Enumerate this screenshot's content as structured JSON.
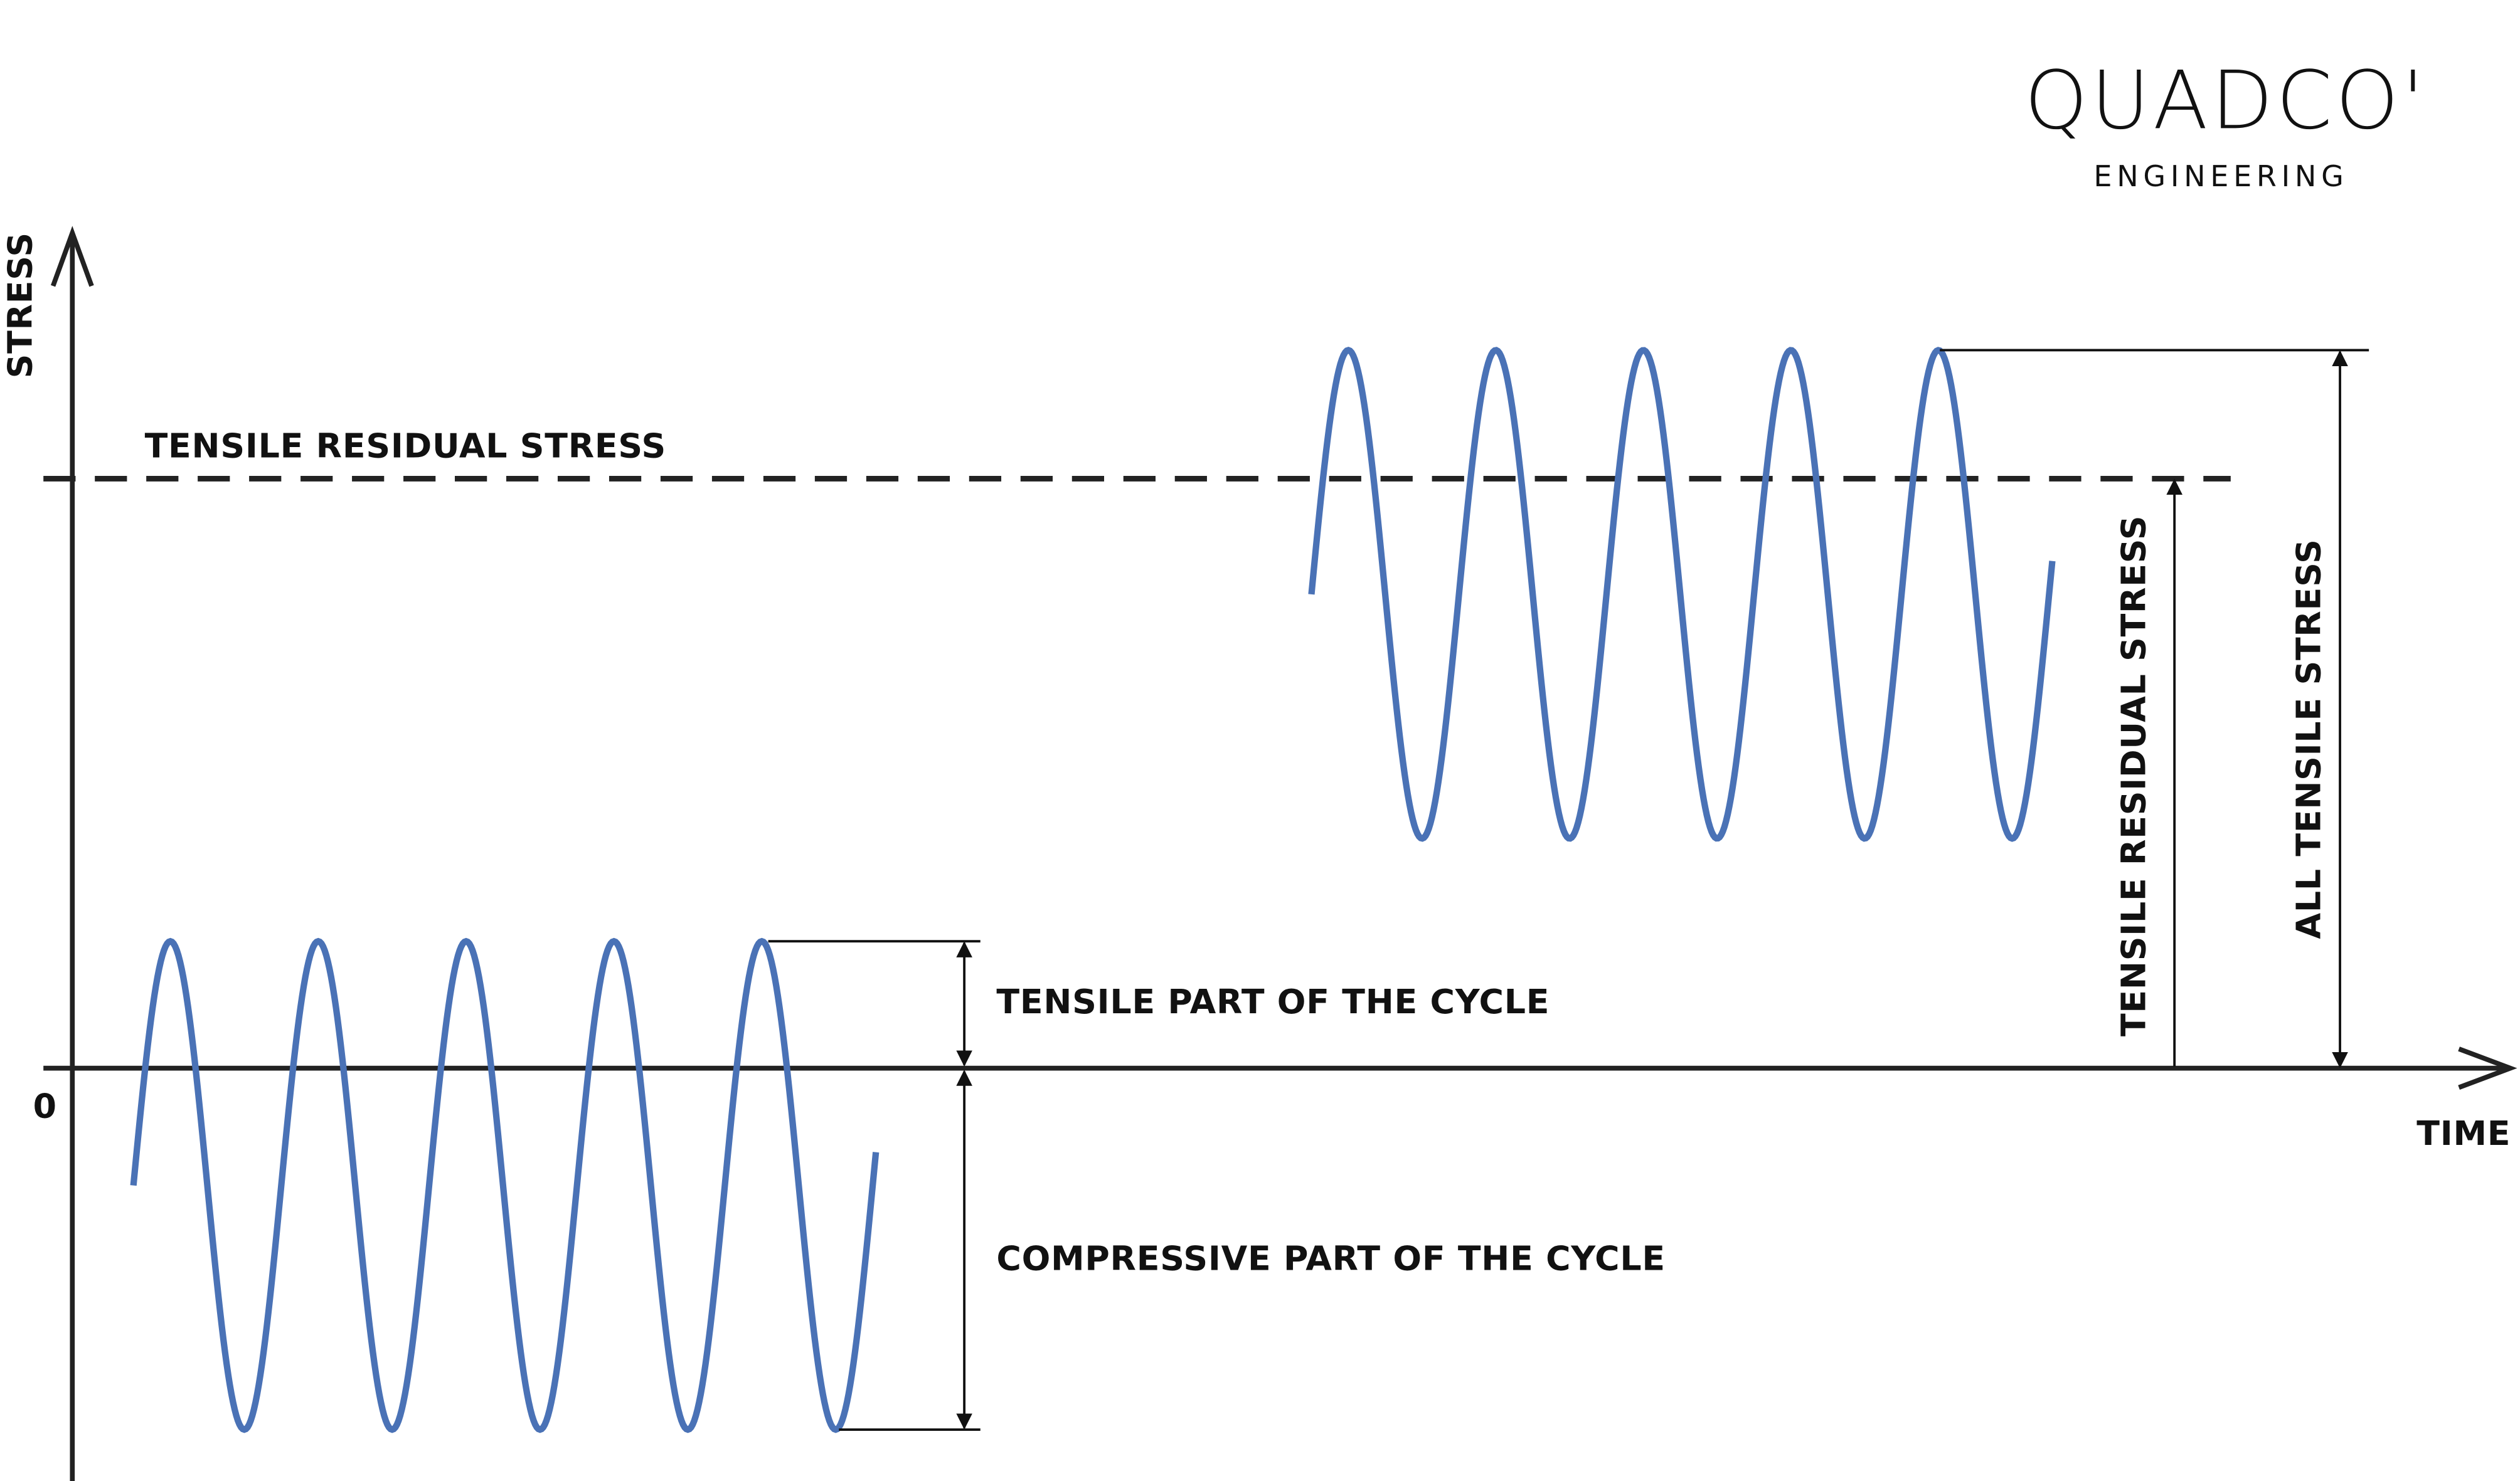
{
  "logo": {
    "name": "QUADCO'",
    "subtitle": "ENGINEERING"
  },
  "axes": {
    "y_label": "STRESS",
    "x_label": "TIME",
    "origin": "0"
  },
  "annotations": {
    "residual_line": "TENSILE RESIDUAL STRESS",
    "tensile_part": "TENSILE PART OF THE CYCLE",
    "compressive_part": "COMPRESSIVE PART OF THE CYCLE",
    "residual_dimension": "TENSILE RESIDUAL STRESS",
    "all_tensile": "ALL TENSILE STRESS"
  }
}
